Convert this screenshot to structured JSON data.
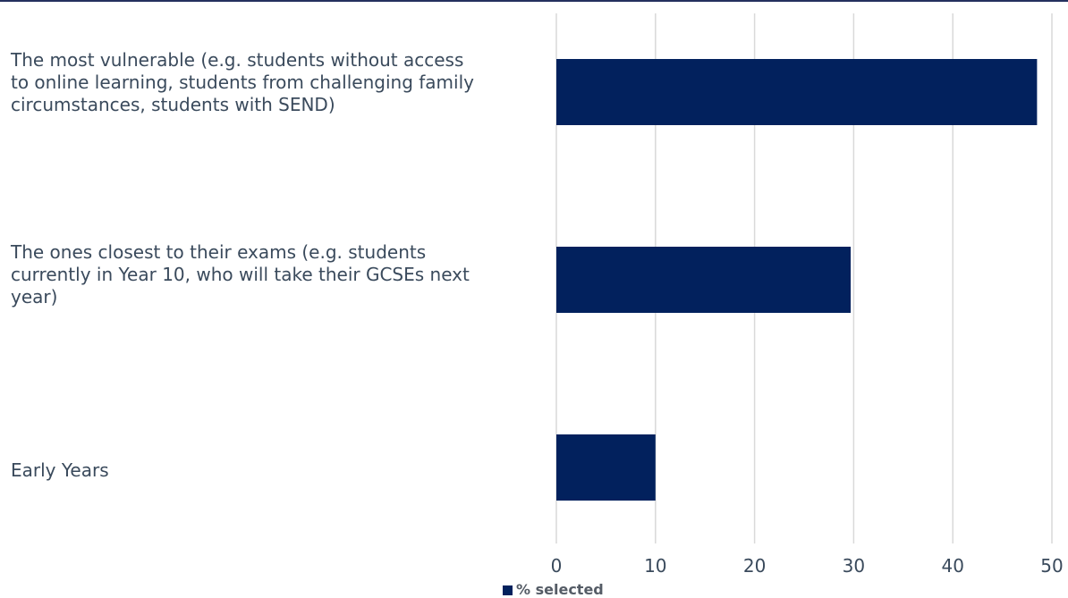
{
  "chart_data": {
    "type": "bar",
    "orientation": "horizontal",
    "categories": [
      "The most vulnerable (e.g. students without access to online learning, students from challenging family circumstances, students with SEND)",
      "The ones closest to their exams (e.g. students currently in Year 10, who will take their GCSEs next year)",
      "Early Years"
    ],
    "series": [
      {
        "name": "% selected",
        "values": [
          48.5,
          29.7,
          10
        ],
        "color": "#02215d"
      }
    ],
    "xlim": [
      0,
      50
    ],
    "xticks": [
      0,
      10,
      20,
      30,
      40,
      50
    ],
    "grid": "vertical",
    "legend": "bottom",
    "title": "",
    "xlabel": "",
    "ylabel": ""
  }
}
